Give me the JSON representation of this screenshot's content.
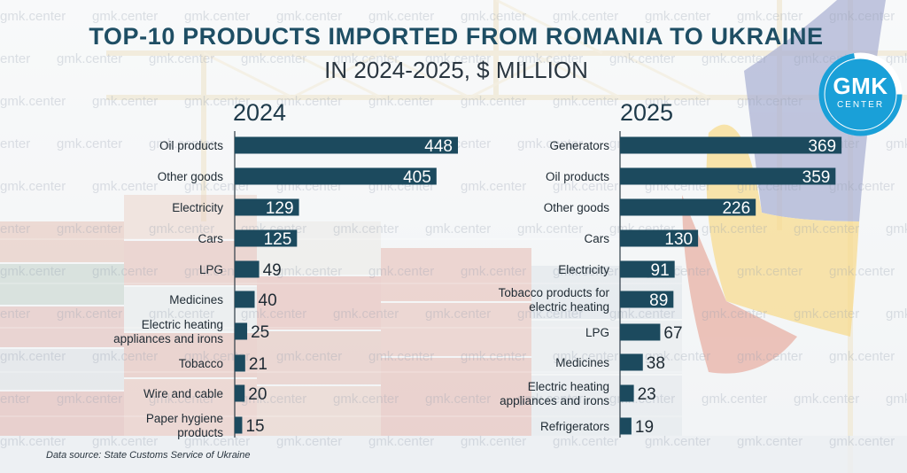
{
  "title": "TOP-10 PRODUCTS IMPORTED FROM ROMANIA  TO UKRAINE",
  "subtitle": "IN 2024-2025, $ MILLION",
  "watermark": "gmk.center",
  "source": "Data source: State Customs Service of Ukraine",
  "logo": {
    "main": "GMK",
    "sub": "CENTER"
  },
  "colors": {
    "bar": "#1c4a5e",
    "title": "#1e4e64",
    "logo": "#1aa0d8",
    "accent": "#f6a823"
  },
  "chart_data": [
    {
      "type": "bar",
      "orientation": "horizontal",
      "title": "2024",
      "categories": [
        "Oil products",
        "Other goods",
        "Electricity",
        "Cars",
        "LPG",
        "Medicines",
        "Electric heating appliances and irons",
        "Tobacco",
        "Wire and cable",
        "Paper hygiene products"
      ],
      "label_lines": [
        [
          "Oil products"
        ],
        [
          "Other goods"
        ],
        [
          "Electricity"
        ],
        [
          "Cars"
        ],
        [
          "LPG"
        ],
        [
          "Medicines"
        ],
        [
          "Electric heating",
          "appliances and irons"
        ],
        [
          "Tobacco"
        ],
        [
          "Wire and cable"
        ],
        [
          "Paper hygiene",
          "products"
        ]
      ],
      "values": [
        448,
        405,
        129,
        125,
        49,
        40,
        25,
        21,
        20,
        15
      ],
      "unit": "$ million"
    },
    {
      "type": "bar",
      "orientation": "horizontal",
      "title": "2025",
      "categories": [
        "Generators",
        "Oil products",
        "Other goods",
        "Cars",
        "Electricity",
        "Tobacco products for electric heating",
        "LPG",
        "Medicines",
        "Electric heating appliances and irons",
        "Refrigerators"
      ],
      "label_lines": [
        [
          "Generators"
        ],
        [
          "Oil products"
        ],
        [
          "Other goods"
        ],
        [
          "Cars"
        ],
        [
          "Electricity"
        ],
        [
          "Tobacco products for",
          "electric heating"
        ],
        [
          "LPG"
        ],
        [
          "Medicines"
        ],
        [
          "Electric heating",
          "appliances and irons"
        ],
        [
          "Refrigerators"
        ]
      ],
      "values": [
        369,
        359,
        226,
        130,
        91,
        89,
        67,
        38,
        23,
        19
      ],
      "unit": "$ million"
    }
  ]
}
